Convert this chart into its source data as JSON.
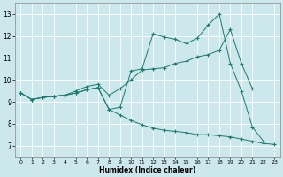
{
  "xlabel": "Humidex (Indice chaleur)",
  "xlim": [
    -0.5,
    23.5
  ],
  "ylim": [
    6.5,
    13.5
  ],
  "xticks": [
    0,
    1,
    2,
    3,
    4,
    5,
    6,
    7,
    8,
    9,
    10,
    11,
    12,
    13,
    14,
    15,
    16,
    17,
    18,
    19,
    20,
    21,
    22,
    23
  ],
  "yticks": [
    7,
    8,
    9,
    10,
    11,
    12,
    13
  ],
  "bg_color": "#cce8ed",
  "line_color": "#1a7a6e",
  "grid_color": "#ffffff",
  "line1_x": [
    0,
    1,
    2,
    3,
    4,
    5,
    6,
    7,
    8,
    9,
    10,
    11,
    12,
    13,
    14,
    15,
    16,
    17,
    18,
    19,
    20,
    21,
    22
  ],
  "line1_y": [
    9.4,
    9.1,
    9.2,
    9.25,
    9.3,
    9.4,
    9.55,
    9.65,
    8.65,
    8.75,
    10.4,
    10.5,
    12.1,
    11.95,
    11.85,
    11.65,
    11.9,
    12.5,
    13.0,
    10.75,
    9.5,
    7.85,
    7.2
  ],
  "line2_x": [
    0,
    1,
    2,
    3,
    4,
    5,
    6,
    7,
    8,
    9,
    10,
    11,
    12,
    13,
    14,
    15,
    16,
    17,
    18,
    19,
    20,
    21,
    22,
    23
  ],
  "line2_y": [
    9.4,
    9.1,
    9.2,
    9.25,
    9.3,
    9.4,
    9.55,
    9.65,
    8.65,
    8.4,
    8.15,
    7.95,
    7.8,
    7.7,
    7.65,
    7.6,
    7.5,
    7.5,
    7.45,
    7.4,
    7.3,
    7.2,
    7.1,
    7.05
  ],
  "line3_x": [
    0,
    1,
    2,
    3,
    4,
    5,
    6,
    7,
    8,
    9,
    10,
    11,
    12,
    13,
    14,
    15,
    16,
    17,
    18,
    19,
    20,
    21
  ],
  "line3_y": [
    9.4,
    9.1,
    9.2,
    9.25,
    9.3,
    9.5,
    9.7,
    9.8,
    9.3,
    9.6,
    10.0,
    10.45,
    10.5,
    10.55,
    10.75,
    10.85,
    11.05,
    11.15,
    11.35,
    12.3,
    10.75,
    9.6
  ]
}
